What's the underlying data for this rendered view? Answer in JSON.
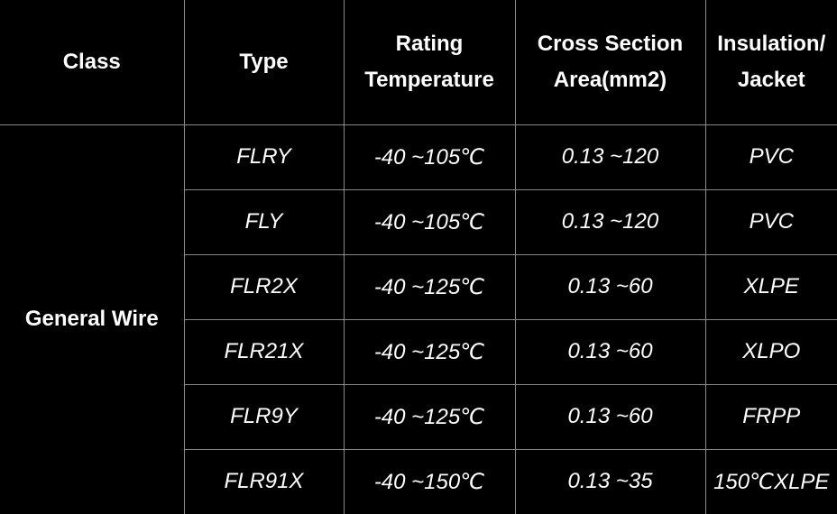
{
  "table": {
    "header": [
      "Class",
      "Type",
      "Rating Temperature",
      "Cross Section Area(mm2)",
      "Insulation/ Jacket"
    ],
    "class": "General Wire",
    "rows": [
      [
        "FLRY",
        "-40 ~105℃",
        "0.13 ~120",
        "PVC"
      ],
      [
        "FLY",
        "-40 ~105℃",
        "0.13 ~120",
        "PVC"
      ],
      [
        "FLR2X",
        "-40 ~125℃",
        "0.13 ~60",
        "XLPE"
      ],
      [
        "FLR21X",
        "-40 ~125℃",
        "0.13 ~60",
        "XLPO"
      ],
      [
        "FLR9Y",
        "-40 ~125℃",
        "0.13 ~60",
        "FRPP"
      ],
      [
        "FLR91X",
        "-40 ~150℃",
        "0.13 ~35",
        "150℃XLPE"
      ]
    ]
  }
}
